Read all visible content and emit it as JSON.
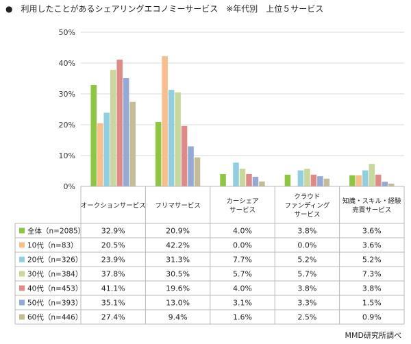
{
  "title": "●　利用したことがあるシェアリングエコノミーサービス　※年代別　上位５サービス",
  "footer": "MMD研究所調べ",
  "chart_data": {
    "type": "bar",
    "title": "利用したことがあるシェアリングエコノミーサービス　※年代別　上位５サービス",
    "categories": [
      "オークションサービス",
      "フリマサービス",
      "カーシェア\nサービス",
      "クラウド\nファンディング\nサービス",
      "知識・スキル・経験\n売買サービス"
    ],
    "y_ticks": [
      "0%",
      "10%",
      "20%",
      "30%",
      "40%",
      "50%"
    ],
    "ylim": [
      0,
      50
    ],
    "grid": true,
    "legend_placement": "table-left",
    "series": [
      {
        "name": "全体（n=2085）",
        "color": "#8DC63F",
        "values": [
          32.9,
          20.9,
          4.0,
          3.8,
          3.6
        ],
        "labels": [
          "32.9%",
          "20.9%",
          "4.0%",
          "3.8%",
          "3.6%"
        ]
      },
      {
        "name": "10代（n=83）",
        "color": "#F9BE8A",
        "values": [
          20.5,
          42.2,
          0.0,
          0.0,
          3.6
        ],
        "labels": [
          "20.5%",
          "42.2%",
          "0.0%",
          "0.0%",
          "3.6%"
        ]
      },
      {
        "name": "20代（n=326）",
        "color": "#8FCFE0",
        "values": [
          23.9,
          31.3,
          7.7,
          5.2,
          5.2
        ],
        "labels": [
          "23.9%",
          "31.3%",
          "7.7%",
          "5.2%",
          "5.2%"
        ]
      },
      {
        "name": "30代（n=384）",
        "color": "#C8D89A",
        "values": [
          37.8,
          30.5,
          5.7,
          5.7,
          7.3
        ],
        "labels": [
          "37.8%",
          "30.5%",
          "5.7%",
          "5.7%",
          "7.3%"
        ]
      },
      {
        "name": "40代（n=453）",
        "color": "#E08A87",
        "values": [
          41.1,
          19.6,
          4.0,
          3.8,
          3.8
        ],
        "labels": [
          "41.1%",
          "19.6%",
          "4.0%",
          "3.8%",
          "3.8%"
        ]
      },
      {
        "name": "50代（n=393）",
        "color": "#93A9D6",
        "values": [
          35.1,
          13.0,
          3.1,
          3.3,
          1.5
        ],
        "labels": [
          "35.1%",
          "13.0%",
          "3.1%",
          "3.3%",
          "1.5%"
        ]
      },
      {
        "name": "60代（n=446）",
        "color": "#C4BC96",
        "values": [
          27.4,
          9.4,
          1.6,
          2.5,
          0.9
        ],
        "labels": [
          "27.4%",
          "9.4%",
          "1.6%",
          "2.5%",
          "0.9%"
        ]
      }
    ]
  }
}
